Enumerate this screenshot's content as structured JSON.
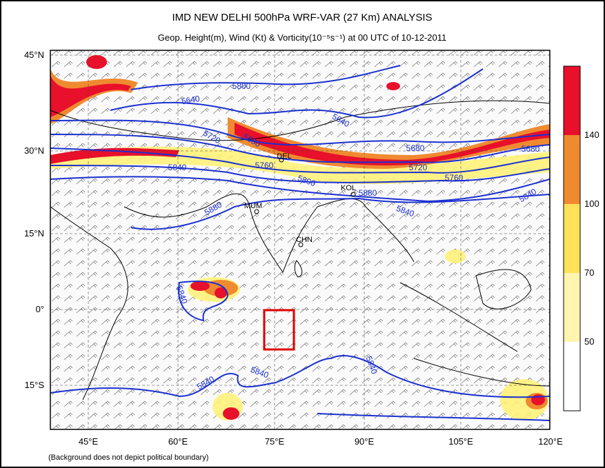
{
  "header": {
    "title": "IMD NEW DELHI 500hPa WRF-VAR (27 Km) ANALYSIS",
    "subtitle": "Geop. Height(m), Wind (Kt) & Vorticity(10⁻⁵s⁻¹) at 00 UTC of 10-12-2011"
  },
  "axes": {
    "lat_labels": [
      "45°N",
      "30°N",
      "15°N",
      "0°",
      "15°S"
    ],
    "lon_labels": [
      "45°E",
      "60°E",
      "75°E",
      "90°E",
      "105°E",
      "120°E"
    ]
  },
  "colorbar": {
    "labels": [
      "140",
      "100",
      "70",
      "50"
    ]
  },
  "contour_labels": [
    "5800",
    "5640",
    "5720",
    "5680",
    "5760",
    "5840",
    "5880",
    "5800",
    "5640",
    "5680",
    "5720",
    "5760",
    "5680",
    "5840",
    "5840",
    "5880",
    "5840",
    "5840",
    "5840",
    "5840"
  ],
  "cities": [
    "DEL",
    "MUM",
    "KOL",
    "CHN"
  ],
  "footnote": "(Background does not depict political boundary)"
}
